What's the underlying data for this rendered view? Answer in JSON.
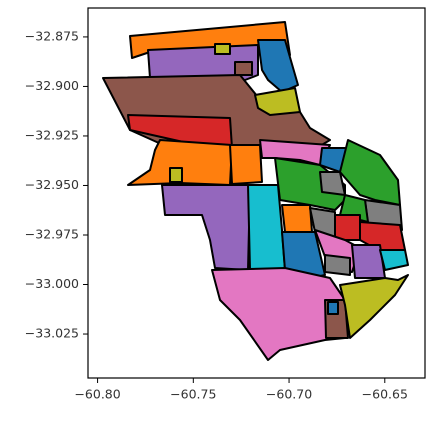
{
  "chart_data": {
    "type": "map",
    "xlim": [
      -60.805,
      -60.629
    ],
    "ylim": [
      -33.0472,
      -32.8604
    ],
    "xticks": [
      {
        "value": -60.8,
        "label": "−60.80"
      },
      {
        "value": -60.75,
        "label": "−60.75"
      },
      {
        "value": -60.7,
        "label": "−60.70"
      },
      {
        "value": -60.65,
        "label": "−60.65"
      }
    ],
    "yticks": [
      {
        "value": -32.875,
        "label": "−32.875"
      },
      {
        "value": -32.9,
        "label": "−32.900"
      },
      {
        "value": -32.925,
        "label": "−32.925"
      },
      {
        "value": -32.95,
        "label": "−32.950"
      },
      {
        "value": -32.975,
        "label": "−32.975"
      },
      {
        "value": -33.0,
        "label": "−33.000"
      },
      {
        "value": -33.025,
        "label": "−33.025"
      }
    ]
  }
}
